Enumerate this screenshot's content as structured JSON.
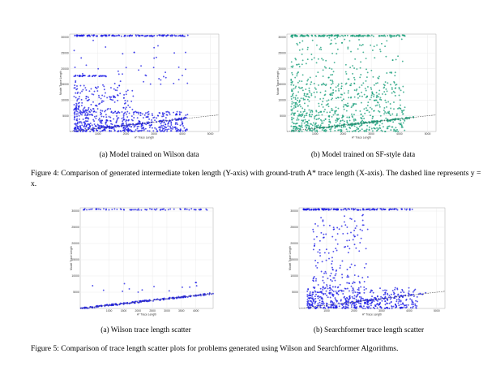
{
  "figure4": {
    "caption": "Figure 4: Comparison of generated intermediate token length (Y-axis) with ground-truth A* trace length (X-axis). The dashed line represents y = x.",
    "subcaption_a": "(a) Model trained on Wilson data",
    "subcaption_b": "(b) Model trained on SF-style data"
  },
  "figure5": {
    "caption": "Figure 5: Comparison of trace length scatter plots for problems generated using Wilson and Searchformer Algorithms.",
    "subcaption_a": "(a) Wilson trace length scatter",
    "subcaption_b": "(b) Searchformer trace length scatter"
  },
  "chart_data": [
    {
      "type": "scatter",
      "xlabel": "A* Trace Length",
      "ylabel": "Model Trace Length",
      "xticks": [
        1000,
        2000,
        3000,
        4000,
        5000
      ],
      "yticks": [
        5000,
        10000,
        15000,
        20000,
        25000,
        30000
      ],
      "xlim": [
        0,
        5300
      ],
      "ylim": [
        0,
        31000
      ],
      "grid": true,
      "color": "#1a1ae6",
      "reference_line": "y = x (dashed)",
      "clusters": [
        {
          "x_range": [
            150,
            4200
          ],
          "y_range": [
            0,
            6500
          ],
          "count": 520
        },
        {
          "x_range": [
            150,
            4200
          ],
          "y_band": 30500,
          "count": 140
        },
        {
          "x_range": [
            150,
            2300
          ],
          "y_range": [
            6500,
            15000
          ],
          "count": 150
        },
        {
          "x_range": [
            150,
            1300
          ],
          "y_band": 17700,
          "count": 40
        },
        {
          "x_range": [
            150,
            4200
          ],
          "y_range": [
            15000,
            29000
          ],
          "count": 45
        },
        {
          "along_diagonal": true,
          "x_range": [
            1000,
            4200
          ],
          "count": 120
        }
      ]
    },
    {
      "type": "scatter",
      "xlabel": "A* Trace Length",
      "ylabel": "Model Trace Length",
      "xticks": [
        1000,
        2000,
        3000,
        4000,
        5000
      ],
      "yticks": [
        5000,
        10000,
        15000,
        20000,
        25000,
        30000
      ],
      "xlim": [
        0,
        5300
      ],
      "ylim": [
        0,
        31000
      ],
      "grid": true,
      "color": "#169e78",
      "reference_line": "y = x (dashed)",
      "clusters": [
        {
          "x_range": [
            150,
            4200
          ],
          "y_range": [
            0,
            15000
          ],
          "count": 650
        },
        {
          "x_range": [
            150,
            4200
          ],
          "y_band": 30500,
          "count": 150
        },
        {
          "x_range": [
            150,
            4200
          ],
          "y_range": [
            15000,
            30000
          ],
          "count": 170
        },
        {
          "along_diagonal": true,
          "x_range": [
            1000,
            4500
          ],
          "count": 150
        }
      ]
    },
    {
      "type": "scatter",
      "xlabel": "A* Trace Length",
      "ylabel": "Model Trace Length",
      "xticks": [
        1000,
        1500,
        2000,
        2500,
        3000,
        3500,
        4000
      ],
      "yticks": [
        5000,
        10000,
        15000,
        20000,
        25000,
        30000
      ],
      "xlim": [
        0,
        4600
      ],
      "ylim": [
        0,
        31000
      ],
      "grid": true,
      "color": "#1a1ae6",
      "reference_line": "y = x (dashed)",
      "clusters": [
        {
          "along_diagonal": true,
          "x_range": [
            0,
            4600
          ],
          "count": 260
        },
        {
          "x_range": [
            100,
            4400
          ],
          "y_band": 30500,
          "count": 70
        },
        {
          "x_range": [
            300,
            4200
          ],
          "y_range": [
            5000,
            8000
          ],
          "count": 14
        }
      ]
    },
    {
      "type": "scatter",
      "xlabel": "A* Trace Length",
      "ylabel": "Model Trace Length",
      "xticks": [
        1000,
        2000,
        3000,
        4000,
        5000
      ],
      "yticks": [
        5000,
        10000,
        15000,
        20000,
        25000,
        30000
      ],
      "xlim": [
        0,
        5300
      ],
      "ylim": [
        0,
        31000
      ],
      "grid": true,
      "color": "#1a1ae6",
      "reference_line": "y = x (dashed)",
      "clusters": [
        {
          "x_range": [
            300,
            4300
          ],
          "y_range": [
            0,
            6500
          ],
          "count": 520
        },
        {
          "x_range": [
            150,
            4200
          ],
          "y_band": 30500,
          "count": 160
        },
        {
          "x_range": [
            500,
            2500
          ],
          "y_range": [
            6500,
            29000
          ],
          "count": 160
        },
        {
          "along_diagonal": true,
          "x_range": [
            2000,
            4600
          ],
          "count": 60
        }
      ]
    }
  ]
}
